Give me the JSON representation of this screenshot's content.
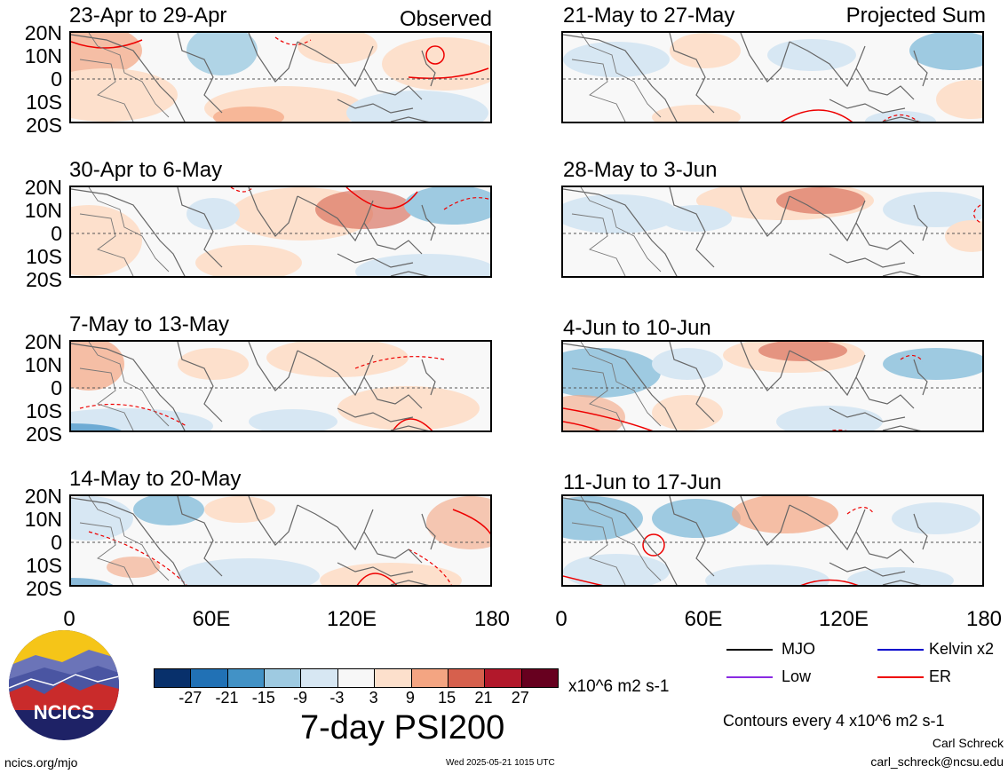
{
  "panels": {
    "observed": [
      {
        "title": "23-Apr to 29-Apr"
      },
      {
        "title": "30-Apr to 6-May"
      },
      {
        "title": "7-May to 13-May"
      },
      {
        "title": "14-May to 20-May"
      }
    ],
    "projected": [
      {
        "title": "21-May to 27-May"
      },
      {
        "title": "28-May to 3-Jun"
      },
      {
        "title": "4-Jun to 10-Jun"
      },
      {
        "title": "11-Jun to 17-Jun"
      }
    ]
  },
  "column_labels": {
    "left": "Observed",
    "right": "Projected Sum"
  },
  "lat_labels": [
    "20N",
    "10N",
    "0",
    "10S",
    "20S"
  ],
  "lon_labels": [
    "0",
    "60E",
    "120E",
    "180"
  ],
  "colorbar": {
    "colors": [
      "#08306b",
      "#2171b5",
      "#4292c6",
      "#9ecae1",
      "#d7e7f3",
      "#f7f7f7",
      "#fde0cc",
      "#f4a582",
      "#d6604d",
      "#b2182b",
      "#67001f"
    ],
    "tick_labels": [
      "-27",
      "-21",
      "-15",
      "-9",
      "-3",
      "3",
      "9",
      "15",
      "21",
      "27"
    ],
    "units": "x10^6 m2 s-1",
    "title": "7-day PSI200"
  },
  "legend": [
    {
      "label": "MJO",
      "color": "#000000"
    },
    {
      "label": "Kelvin x2",
      "color": "#0000cc"
    },
    {
      "label": "Low",
      "color": "#8a2be2"
    },
    {
      "label": "ER",
      "color": "#ee0000"
    }
  ],
  "contour_note": "Contours every 4 x10^6 m2 s-1",
  "org_logo_text": "NCICS",
  "author": "Carl Schreck",
  "email": "carl_schreck@ncsu.edu",
  "site": "ncics.org/mjo",
  "timestamp": "Wed 2025-05-21 1015 UTC"
}
